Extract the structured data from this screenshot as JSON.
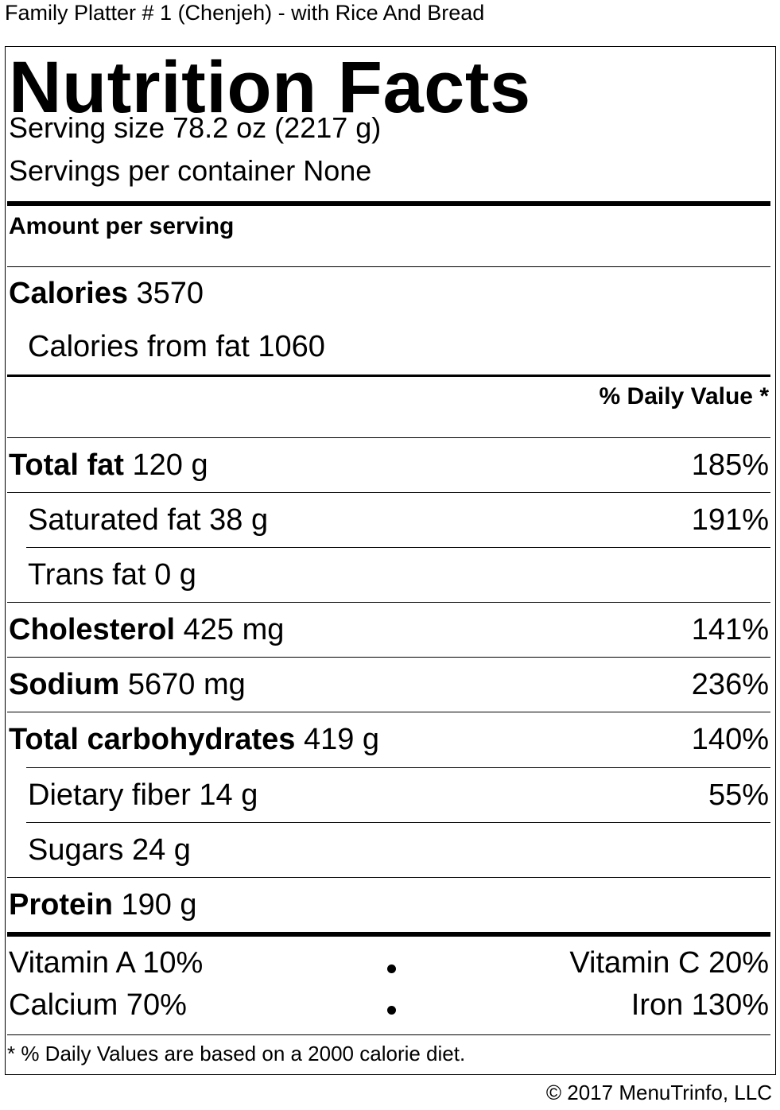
{
  "header": {
    "title": "Family Platter # 1 (Chenjeh) - with Rice And Bread"
  },
  "label": {
    "title": "Nutrition Facts",
    "serving_size": "Serving size 78.2 oz (2217 g)",
    "servings_per_container": "Servings per container None",
    "amount_per_serving": "Amount per serving",
    "calories": {
      "label": "Calories",
      "value": "3570"
    },
    "calories_from_fat": {
      "label": "Calories from fat",
      "value": "1060"
    },
    "daily_value_header": "% Daily Value *",
    "nutrients": [
      {
        "label": "Total fat",
        "amount": "120 g",
        "dv": "185%"
      },
      {
        "label": "Saturated fat",
        "amount": "38 g",
        "dv": "191%"
      },
      {
        "label": "Trans fat",
        "amount": "0 g",
        "dv": ""
      },
      {
        "label": "Cholesterol",
        "amount": "425 mg",
        "dv": "141%"
      },
      {
        "label": "Sodium",
        "amount": "5670 mg",
        "dv": "236%"
      },
      {
        "label": "Total carbohydrates",
        "amount": "419 g",
        "dv": "140%"
      },
      {
        "label": "Dietary fiber",
        "amount": "14 g",
        "dv": "55%"
      },
      {
        "label": "Sugars",
        "amount": "24 g",
        "dv": ""
      },
      {
        "label": "Protein",
        "amount": "190 g",
        "dv": ""
      }
    ],
    "vitamins": {
      "vitamin_a": "Vitamin A 10%",
      "vitamin_c": "Vitamin C 20%",
      "calcium": "Calcium 70%",
      "iron": "Iron 130%"
    },
    "footnote": "* % Daily Values are based on a 2000 calorie diet."
  },
  "footer": {
    "copyright": "© 2017 MenuTrinfo, LLC"
  }
}
